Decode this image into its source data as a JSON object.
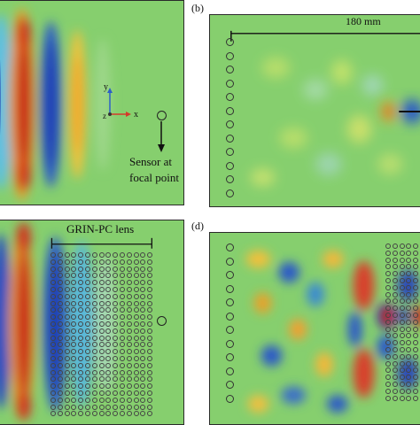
{
  "panels": {
    "b": {
      "label": "(b)",
      "distance_label": "180 mm"
    },
    "d": {
      "label": "(d)"
    }
  },
  "annotations": {
    "sensor_line1": "Sensor at",
    "sensor_line2": "focal point",
    "lens_label": "GRIN-PC lens",
    "axis_y": "y",
    "axis_x": "x",
    "axis_z": "z"
  },
  "colors": {
    "background_field": "#86cf6e",
    "positive_peak": "#c8201a",
    "positive_mid": "#f5b62a",
    "negative_peak": "#1f3fb4",
    "negative_mid": "#59b7d8",
    "axis_red": "#d43a2a",
    "axis_blue": "#2d5fc8"
  }
}
